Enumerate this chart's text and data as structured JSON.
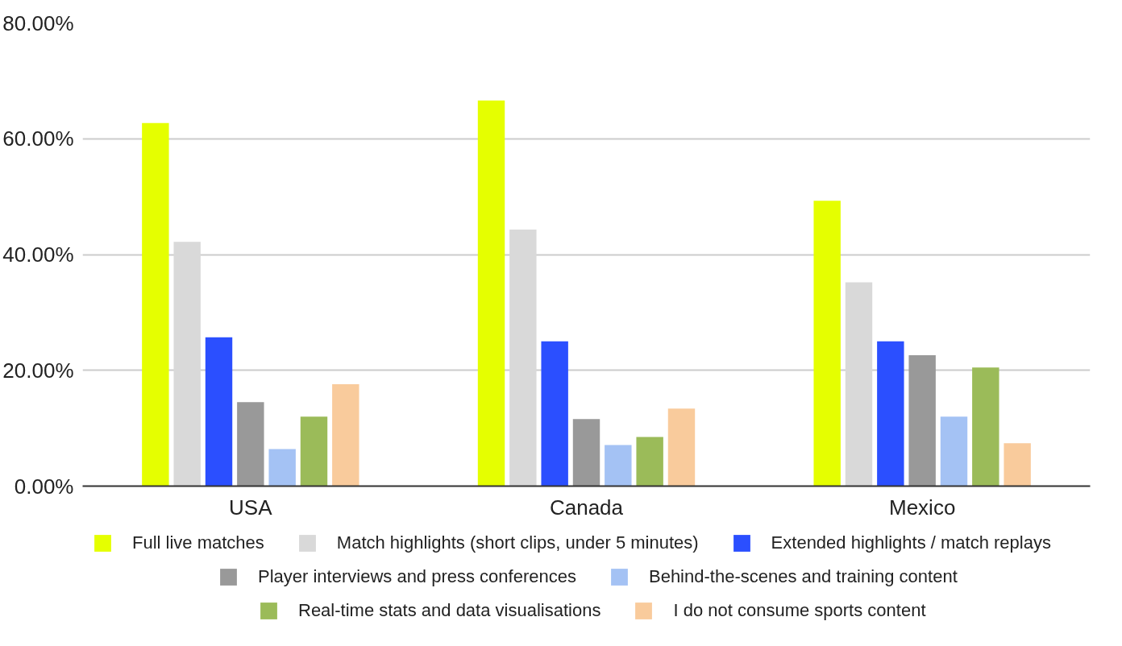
{
  "chart_data": {
    "type": "bar",
    "categories": [
      "USA",
      "Canada",
      "Mexico"
    ],
    "series": [
      {
        "name": "Full live matches",
        "color": "#e5ff00",
        "values": [
          62.7,
          66.6,
          49.3
        ]
      },
      {
        "name": "Match highlights (short clips, under 5 minutes)",
        "color": "#d9d9d9",
        "values": [
          42.2,
          44.3,
          35.2
        ]
      },
      {
        "name": "Extended highlights / match replays",
        "color": "#2b4fff",
        "values": [
          25.7,
          25.0,
          25.0
        ]
      },
      {
        "name": "Player interviews and press conferences",
        "color": "#999999",
        "values": [
          14.5,
          11.6,
          22.6
        ]
      },
      {
        "name": "Behind-the-scenes and training content",
        "color": "#a4c2f4",
        "values": [
          6.4,
          7.1,
          12.0
        ]
      },
      {
        "name": "Real-time stats and data visualisations",
        "color": "#9bbb59",
        "values": [
          12.0,
          8.5,
          20.5
        ]
      },
      {
        "name": "I do not consume sports content",
        "color": "#f9cb9c",
        "values": [
          17.6,
          13.4,
          7.4
        ]
      }
    ],
    "ylim": [
      0,
      80
    ],
    "yticks": [
      {
        "value": 0,
        "label": "0.00%"
      },
      {
        "value": 20,
        "label": "20.00%"
      },
      {
        "value": 40,
        "label": "40.00%"
      },
      {
        "value": 60,
        "label": "60.00%"
      },
      {
        "value": 80,
        "label": "80.00%"
      }
    ],
    "grid": "y",
    "legend": "bottom"
  }
}
